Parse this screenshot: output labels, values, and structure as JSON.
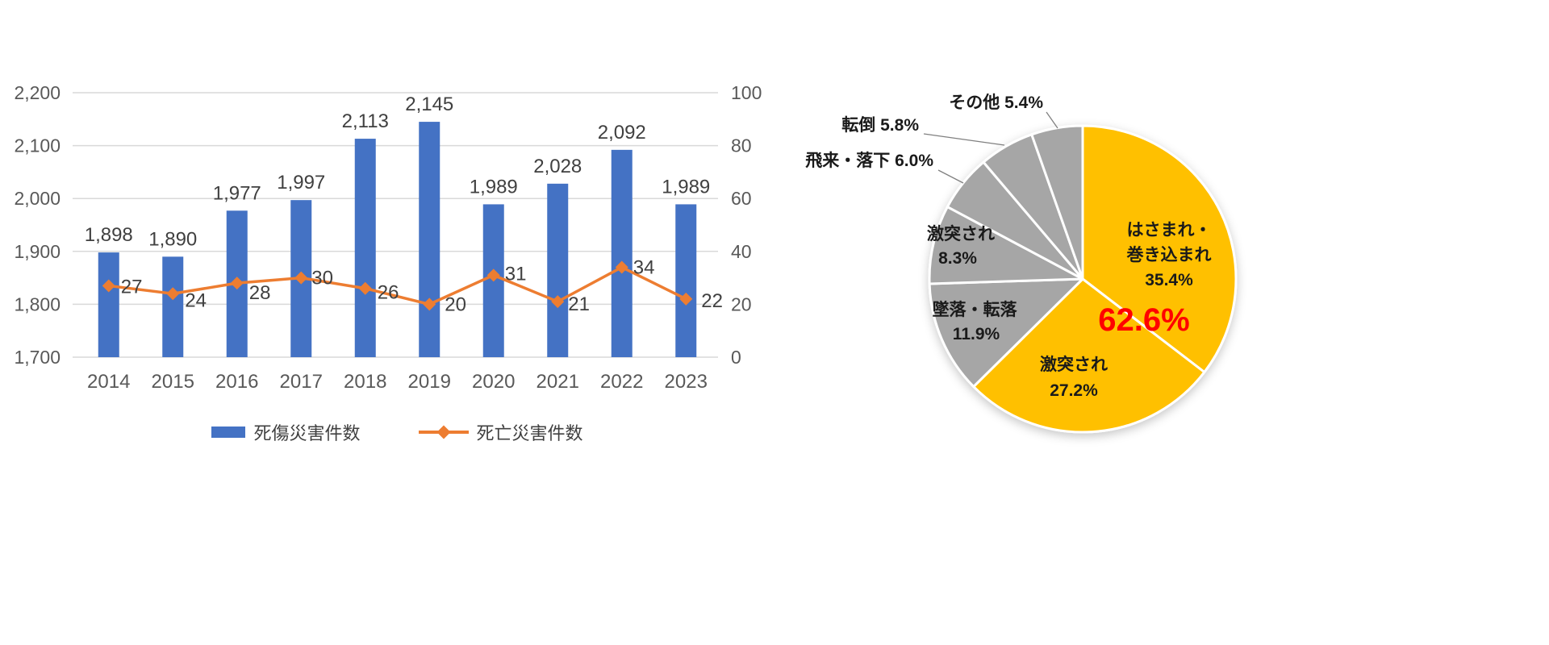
{
  "chart_data": [
    {
      "type": "bar",
      "subtype": "combo-bar-line",
      "categories": [
        "2014",
        "2015",
        "2016",
        "2017",
        "2018",
        "2019",
        "2020",
        "2021",
        "2022",
        "2023"
      ],
      "series": [
        {
          "name": "死傷災害件数",
          "type": "bar",
          "axis": "left",
          "color": "#4472C4",
          "values": [
            1898,
            1890,
            1977,
            1997,
            2113,
            2145,
            1989,
            2028,
            2092,
            1989
          ],
          "labels": [
            "1,898",
            "1,890",
            "1,977",
            "1,997",
            "2,113",
            "2,145",
            "1,989",
            "2,028",
            "2,092",
            "1,989"
          ]
        },
        {
          "name": "死亡災害件数",
          "type": "line",
          "axis": "right",
          "color": "#ED7D31",
          "values": [
            27,
            24,
            28,
            30,
            26,
            20,
            31,
            21,
            34,
            22
          ],
          "labels": [
            "27",
            "24",
            "28",
            "30",
            "26",
            "20",
            "31",
            "21",
            "34",
            "22"
          ]
        }
      ],
      "left_axis": {
        "min": 1700,
        "max": 2200,
        "step": 100,
        "tick_labels": [
          "1,700",
          "1,800",
          "1,900",
          "2,000",
          "2,100",
          "2,200"
        ]
      },
      "right_axis": {
        "min": 0,
        "max": 100,
        "step": 20,
        "tick_labels": [
          "0",
          "20",
          "40",
          "60",
          "80",
          "100"
        ]
      },
      "grid": true,
      "legend_position": "bottom"
    },
    {
      "type": "pie",
      "start_angle_deg": 0,
      "direction": "clockwise",
      "slices": [
        {
          "label": "はさまれ・巻き込まれ",
          "label_lines": [
            "はさまれ・",
            "巻き込まれ"
          ],
          "value": 35.4,
          "pct_label": "35.4%",
          "color": "#FFC000",
          "label_placement": "inside"
        },
        {
          "label": "激突され",
          "value": 27.2,
          "pct_label": "27.2%",
          "color": "#FFC000",
          "label_placement": "inside"
        },
        {
          "label": "墜落・転落",
          "value": 11.9,
          "pct_label": "11.9%",
          "color": "#A6A6A6",
          "label_placement": "outside"
        },
        {
          "label": "激突され",
          "value": 8.3,
          "pct_label": "8.3%",
          "color": "#A6A6A6",
          "label_placement": "outside"
        },
        {
          "label": "飛来・落下",
          "value": 6.0,
          "pct_label": "6.0%",
          "color": "#A6A6A6",
          "label_placement": "outside-leader"
        },
        {
          "label": "転倒",
          "value": 5.8,
          "pct_label": "5.8%",
          "color": "#A6A6A6",
          "label_placement": "outside-leader"
        },
        {
          "label": "その他",
          "value": 5.4,
          "pct_label": "5.4%",
          "color": "#A6A6A6",
          "label_placement": "outside-leader"
        }
      ],
      "annotation": {
        "text": "62.6%",
        "color": "#FF0000"
      }
    }
  ],
  "legend": {
    "items": [
      {
        "label": "死傷災害件数",
        "swatch": "bar",
        "color": "#4472C4"
      },
      {
        "label": "死亡災害件数",
        "swatch": "line-diamond",
        "color": "#ED7D31"
      }
    ]
  },
  "palette": {
    "bar_blue": "#4472C4",
    "line_orange": "#ED7D31",
    "pie_yellow": "#FFC000",
    "pie_gray": "#A6A6A6",
    "highlight_red": "#FF0000",
    "axis_text": "#595959",
    "data_label_text": "#404040",
    "gridline": "#D9D9D9"
  }
}
